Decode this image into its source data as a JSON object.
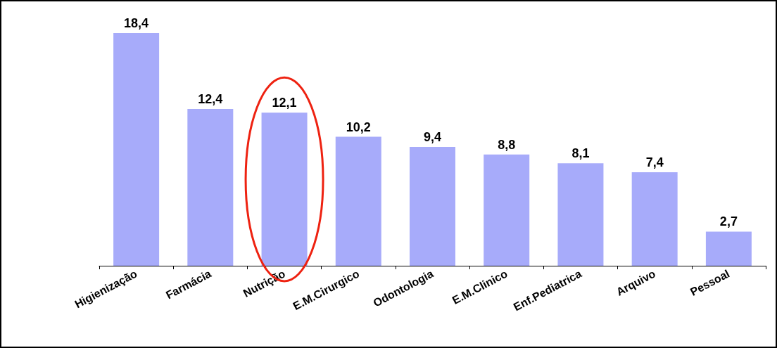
{
  "chart_data": {
    "type": "bar",
    "categories": [
      "Higienização",
      "Farmácia",
      "Nutrição",
      "E.M.Cirurgico",
      "Odontologia",
      "E.M.Clinico",
      "Enf.Pediatrica",
      "Arquivo",
      "Pessoal"
    ],
    "values": [
      18.4,
      12.4,
      12.1,
      10.2,
      9.4,
      8.8,
      8.1,
      7.4,
      2.7
    ],
    "value_labels": [
      "18,4",
      "12,4",
      "12,1",
      "10,2",
      "9,4",
      "8,8",
      "8,1",
      "7,4",
      "2,7"
    ],
    "color": "#a7abfa"
  }
}
